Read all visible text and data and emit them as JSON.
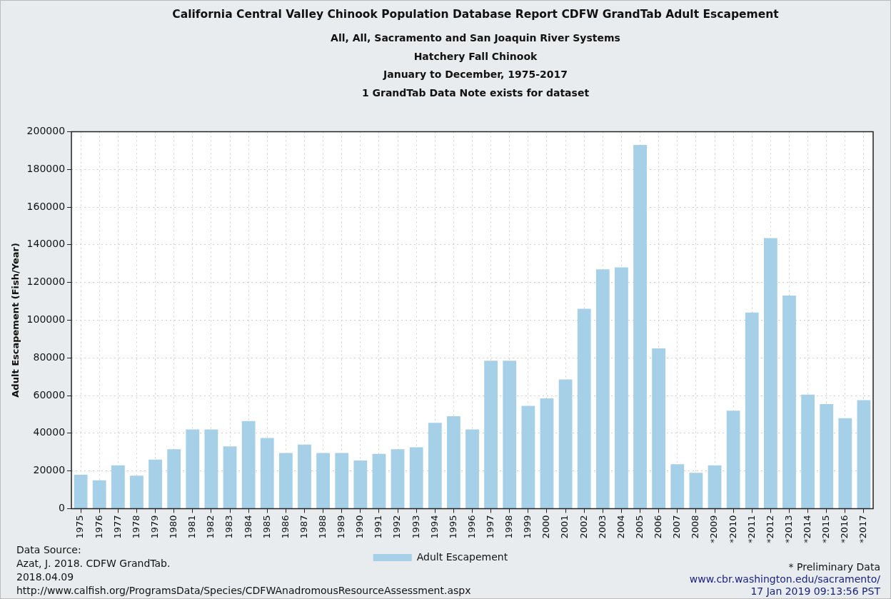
{
  "chart_data": {
    "type": "bar",
    "title": "California Central Valley Chinook Population Database Report CDFW GrandTab Adult Escapement",
    "subtitle": "All, All, Sacramento and San Joaquin River Systems\nHatchery Fall Chinook\nJanuary to December, 1975-2017\n1 GrandTab Data Note exists for dataset",
    "ylabel": "Adult Escapement (Fish/Year)",
    "categories": [
      "1975",
      "1976",
      "1977",
      "1978",
      "1979",
      "1980",
      "1981",
      "1982",
      "1983",
      "1984",
      "1985",
      "1986",
      "1987",
      "1988",
      "1989",
      "1990",
      "1991",
      "1992",
      "1993",
      "1994",
      "1995",
      "1996",
      "1997",
      "1998",
      "1999",
      "2000",
      "2001",
      "2002",
      "2003",
      "2004",
      "2005",
      "2006",
      "2007",
      "2008",
      "*2009",
      "*2010",
      "*2011",
      "*2012",
      "*2013",
      "*2014",
      "*2015",
      "*2016",
      "*2017"
    ],
    "series": [
      {
        "name": "Adult Escapement",
        "color": "#a6d0e8",
        "values": [
          18000,
          15000,
          23000,
          17500,
          26000,
          31500,
          42000,
          42000,
          33000,
          46500,
          37500,
          29500,
          34000,
          29500,
          29500,
          25500,
          29000,
          31500,
          32500,
          45500,
          49000,
          42000,
          78500,
          78500,
          54500,
          58500,
          68500,
          106000,
          127000,
          128000,
          193000,
          85000,
          23500,
          19000,
          23000,
          52000,
          104000,
          143500,
          113000,
          60500,
          55500,
          48000,
          57500
        ]
      }
    ],
    "ylim": [
      0,
      200000
    ],
    "yticks": [
      0,
      20000,
      40000,
      60000,
      80000,
      100000,
      120000,
      140000,
      160000,
      180000,
      200000
    ],
    "grid": true,
    "legend": "bottom",
    "annotations": [
      "Data Source:\nAzat, J. 2018. CDFW GrandTab.\n2018.04.09\nhttp://www.calfish.org/ProgramsData/Species/CDFWAnadromousResourceAssessment.aspx",
      "* Preliminary Data",
      "www.cbr.washington.edu/sacramento/\n17 Jan 2019 09:13:56 PST"
    ]
  }
}
